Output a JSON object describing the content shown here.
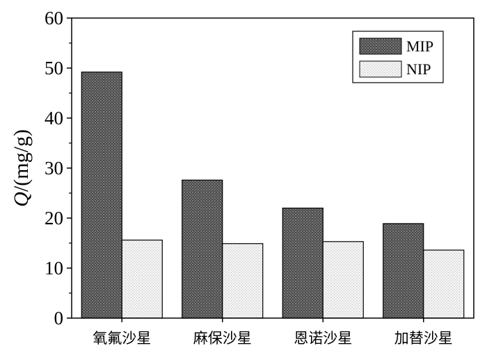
{
  "chart_data": {
    "type": "bar",
    "title": "",
    "xlabel": "",
    "ylabel_italic": "Q",
    "ylabel_rest": "/(mg/g)",
    "categories": [
      "氧氟沙星",
      "麻保沙星",
      "恩诺沙星",
      "加替沙星"
    ],
    "series": [
      {
        "name": "MIP",
        "values": [
          49.2,
          27.6,
          22.0,
          18.9
        ],
        "color": "#5a5a5a",
        "pattern": "dark-crosshatch"
      },
      {
        "name": "NIP",
        "values": [
          15.6,
          14.9,
          15.3,
          13.6
        ],
        "color": "#ebebeb",
        "pattern": "light-dots"
      }
    ],
    "ylim": [
      0,
      60
    ],
    "yticks": [
      0,
      10,
      20,
      30,
      40,
      50,
      60
    ],
    "minor_ticks": true,
    "grid": false,
    "legend_position": "top-right"
  }
}
